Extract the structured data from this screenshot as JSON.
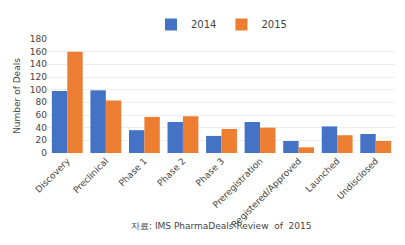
{
  "chart_data": {
    "type": "bar",
    "categories": [
      "Discovery",
      "Preclinical",
      "Phase 1",
      "Phase 2",
      "Phase 3",
      "Preregistration",
      "Registered/Approved",
      "Launched",
      "Undisclosed"
    ],
    "series": [
      {
        "name": "2014",
        "color": "#4472C4",
        "values": [
          98,
          99,
          36,
          49,
          27,
          49,
          19,
          42,
          30
        ]
      },
      {
        "name": "2015",
        "color": "#ED7D31",
        "values": [
          160,
          83,
          57,
          58,
          38,
          40,
          9,
          28,
          19
        ]
      }
    ],
    "ylabel": "Number of Deals",
    "ylim": [
      0,
      180
    ],
    "yticks": [
      0,
      20,
      40,
      60,
      80,
      100,
      120,
      140,
      160,
      180
    ],
    "grid": true,
    "legend": "top",
    "annotations": [
      "자료: IMS PharmaDeals Review  of  2015"
    ]
  }
}
